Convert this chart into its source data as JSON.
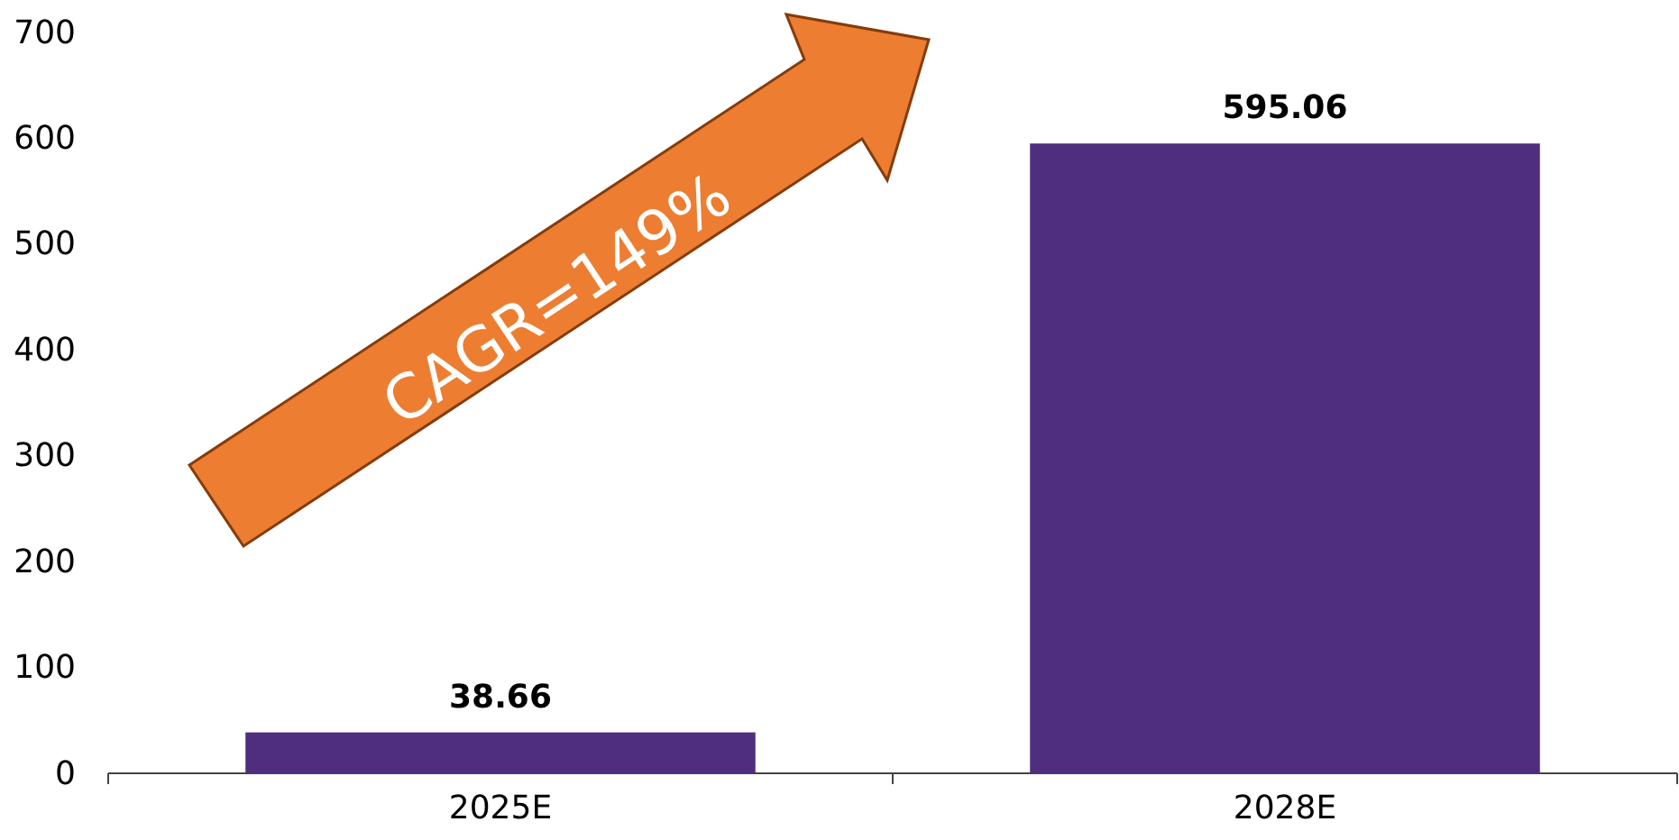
{
  "chart_data": {
    "type": "bar",
    "categories": [
      "2025E",
      "2028E"
    ],
    "values": [
      38.66,
      595.06
    ],
    "color": "#4f2d7f",
    "ylim": [
      0,
      700
    ],
    "yticks": [
      0,
      100,
      200,
      300,
      400,
      500,
      600,
      700
    ],
    "grid": false,
    "data_labels": true,
    "annotations": [
      "CAGR=149%"
    ]
  }
}
